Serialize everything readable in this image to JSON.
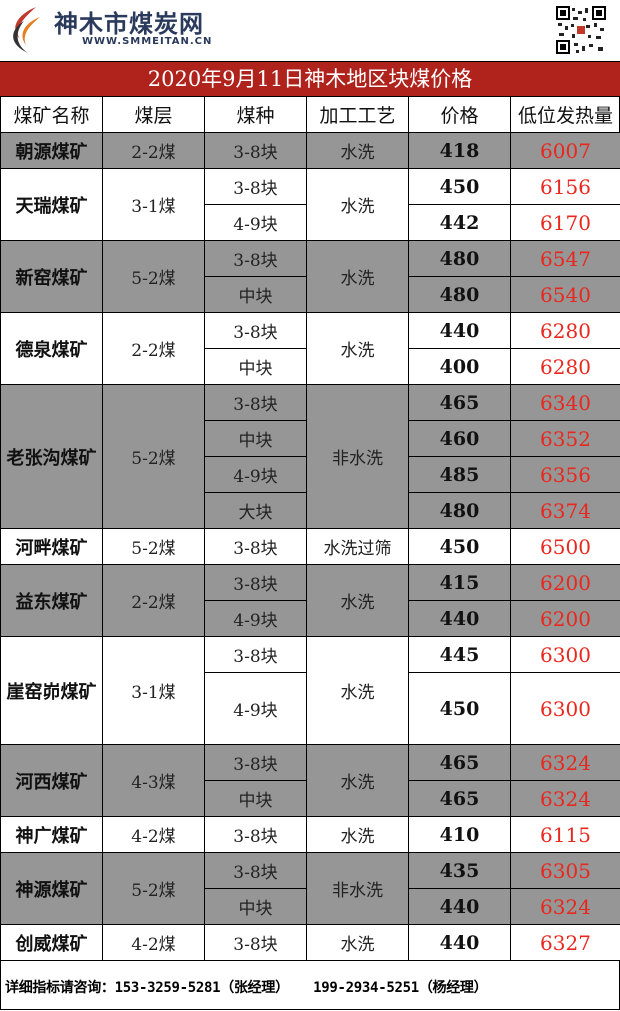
{
  "brand": {
    "name": "神木市煤炭网",
    "url": "WWW.SMMEITAN.CN"
  },
  "title": "2020年9月11日神木地区块煤价格",
  "colors": {
    "title_bg": "#b0231c",
    "shade": "#969696",
    "heat_text": "#e8281e"
  },
  "columns": [
    "煤矿名称",
    "煤层",
    "煤种",
    "加工工艺",
    "价格",
    "低位发热量"
  ],
  "mines": [
    {
      "name": "朝源煤矿",
      "seam": "2-2煤",
      "process": "水洗",
      "items": [
        {
          "type": "3-8块",
          "price": "418",
          "heat": "6007"
        }
      ]
    },
    {
      "name": "天瑞煤矿",
      "seam": "3-1煤",
      "process": "水洗",
      "items": [
        {
          "type": "3-8块",
          "price": "450",
          "heat": "6156"
        },
        {
          "type": "4-9块",
          "price": "442",
          "heat": "6170"
        }
      ]
    },
    {
      "name": "新窑煤矿",
      "seam": "5-2煤",
      "process": "水洗",
      "items": [
        {
          "type": "3-8块",
          "price": "480",
          "heat": "6547"
        },
        {
          "type": "中块",
          "price": "480",
          "heat": "6540"
        }
      ]
    },
    {
      "name": "德泉煤矿",
      "seam": "2-2煤",
      "process": "水洗",
      "items": [
        {
          "type": "3-8块",
          "price": "440",
          "heat": "6280"
        },
        {
          "type": "中块",
          "price": "400",
          "heat": "6280"
        }
      ]
    },
    {
      "name": "老张沟煤矿",
      "seam": "5-2煤",
      "process": "非水洗",
      "items": [
        {
          "type": "3-8块",
          "price": "465",
          "heat": "6340"
        },
        {
          "type": "中块",
          "price": "460",
          "heat": "6352"
        },
        {
          "type": "4-9块",
          "price": "485",
          "heat": "6356"
        },
        {
          "type": "大块",
          "price": "480",
          "heat": "6374"
        }
      ]
    },
    {
      "name": "河畔煤矿",
      "seam": "5-2煤",
      "process": "水洗过筛",
      "items": [
        {
          "type": "3-8块",
          "price": "450",
          "heat": "6500"
        }
      ]
    },
    {
      "name": "益东煤矿",
      "seam": "2-2煤",
      "process": "水洗",
      "items": [
        {
          "type": "3-8块",
          "price": "415",
          "heat": "6200"
        },
        {
          "type": "4-9块",
          "price": "440",
          "heat": "6200"
        }
      ]
    },
    {
      "name": "崖窑峁煤矿",
      "seam": "3-1煤",
      "process": "水洗",
      "items": [
        {
          "type": "3-8块",
          "price": "445",
          "heat": "6300"
        },
        {
          "type": "4-9块",
          "price": "450",
          "heat": "6300"
        }
      ]
    },
    {
      "name": "河西煤矿",
      "seam": "4-3煤",
      "process": "水洗",
      "items": [
        {
          "type": "3-8块",
          "price": "465",
          "heat": "6324"
        },
        {
          "type": "中块",
          "price": "465",
          "heat": "6324"
        }
      ]
    },
    {
      "name": "神广煤矿",
      "seam": "4-2煤",
      "process": "水洗",
      "items": [
        {
          "type": "3-8块",
          "price": "410",
          "heat": "6115"
        }
      ]
    },
    {
      "name": "神源煤矿",
      "seam": "5-2煤",
      "process": "非水洗",
      "items": [
        {
          "type": "3-8块",
          "price": "435",
          "heat": "6305"
        },
        {
          "type": "中块",
          "price": "440",
          "heat": "6324"
        }
      ]
    },
    {
      "name": "创威煤矿",
      "seam": "4-2煤",
      "process": "水洗",
      "items": [
        {
          "type": "3-8块",
          "price": "440",
          "heat": "6327"
        }
      ]
    }
  ],
  "footer": "详细指标请咨询：153-3259-5281（张经理）   199-2934-5251（杨经理）"
}
